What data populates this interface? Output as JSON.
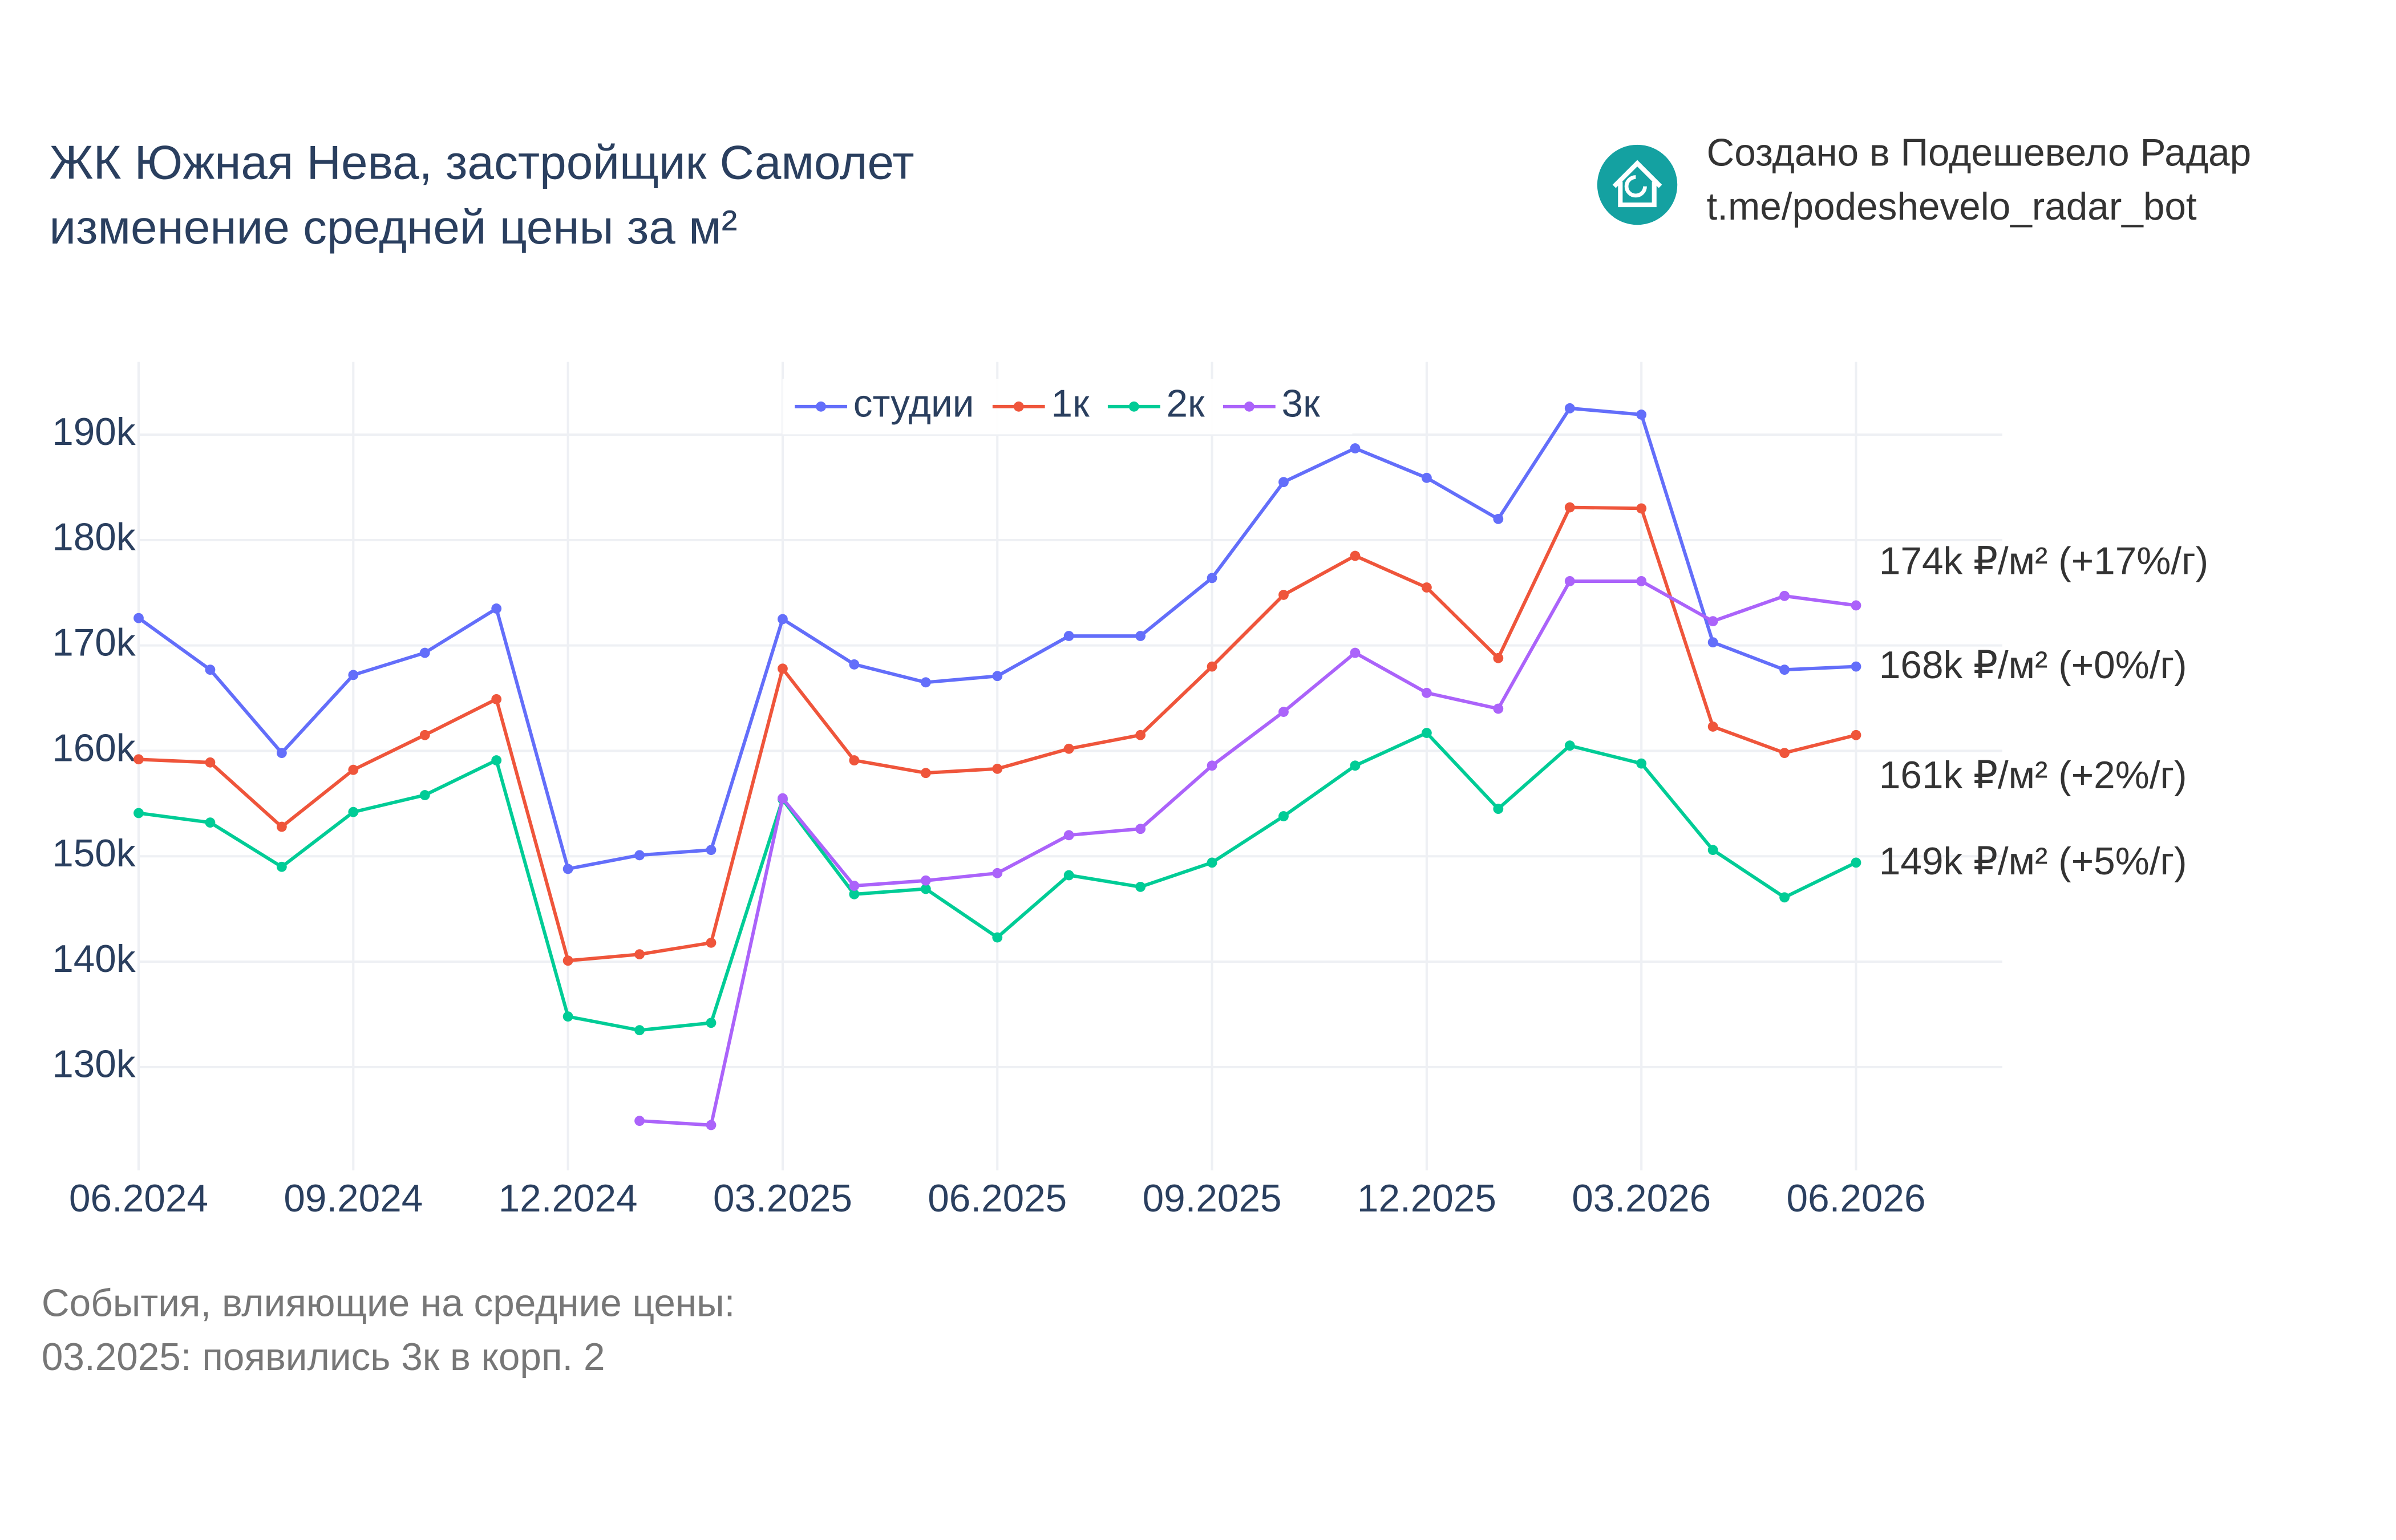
{
  "header": {
    "title_lines": [
      "ЖК Южная Нева, застройщик Самолет",
      "изменение средней цены за м²"
    ],
    "credit_lines": [
      "Создано в Подешевело Радар",
      "t.me/podeshevelo_radar_bot"
    ]
  },
  "chart_data": {
    "type": "line",
    "x": [
      "06.2024",
      "07.2024",
      "08.2024",
      "09.2024",
      "10.2024",
      "11.2024",
      "12.2024",
      "01.2025",
      "02.2025",
      "03.2025",
      "04.2025",
      "05.2025",
      "06.2025",
      "07.2025",
      "08.2025",
      "09.2025",
      "10.2025",
      "11.2025",
      "12.2025",
      "01.2026",
      "02.2026",
      "03.2026",
      "04.2026",
      "05.2026",
      "06.2026"
    ],
    "xticks": [
      "06.2024",
      "09.2024",
      "12.2024",
      "03.2025",
      "06.2025",
      "09.2025",
      "12.2025",
      "03.2026",
      "06.2026"
    ],
    "ylim": [
      120200,
      196900
    ],
    "yticks": [
      {
        "value": 130000,
        "label": "130k"
      },
      {
        "value": 140000,
        "label": "140k"
      },
      {
        "value": 150000,
        "label": "150k"
      },
      {
        "value": 160000,
        "label": "160k"
      },
      {
        "value": 170000,
        "label": "170k"
      },
      {
        "value": 180000,
        "label": "180k"
      },
      {
        "value": 190000,
        "label": "190k"
      }
    ],
    "grid": true,
    "legend": "top",
    "series": [
      {
        "name": "студии",
        "color": "#636efa",
        "end_label": "168k ₽/м² (+0%/г)",
        "values": [
          172600,
          167700,
          159800,
          167200,
          169300,
          173500,
          148800,
          150100,
          150600,
          172500,
          168200,
          166500,
          167100,
          170900,
          170900,
          176400,
          185500,
          188700,
          185900,
          182000,
          192500,
          191900,
          170300,
          167700,
          168000
        ]
      },
      {
        "name": "1к",
        "color": "#ef553b",
        "end_label": "161k ₽/м² (+2%/г)",
        "values": [
          159200,
          158900,
          152800,
          158200,
          161500,
          164900,
          140100,
          140700,
          141800,
          167800,
          159100,
          157900,
          158300,
          160200,
          161500,
          168000,
          174800,
          178500,
          175500,
          168800,
          183100,
          183000,
          162300,
          159800,
          161500
        ]
      },
      {
        "name": "2к",
        "color": "#00cc96",
        "end_label": "149k ₽/м² (+5%/г)",
        "values": [
          154100,
          153200,
          149000,
          154200,
          155800,
          159100,
          134800,
          133500,
          134200,
          155400,
          146400,
          146900,
          142300,
          148200,
          147100,
          149400,
          153800,
          158600,
          161700,
          154500,
          160500,
          158800,
          150600,
          146100,
          149400
        ]
      },
      {
        "name": "3к",
        "color": "#ab63fa",
        "end_label": "174k ₽/м² (+17%/г)",
        "values": [
          null,
          null,
          null,
          null,
          null,
          null,
          null,
          124900,
          124500,
          155500,
          147200,
          147700,
          148400,
          152000,
          152600,
          158600,
          163700,
          169300,
          165500,
          164000,
          176100,
          176100,
          172300,
          174700,
          173800
        ]
      }
    ]
  },
  "notes": {
    "title": "События, влияющие на средние цены:",
    "items": [
      "03.2025: появились 3к в корп. 2"
    ]
  }
}
